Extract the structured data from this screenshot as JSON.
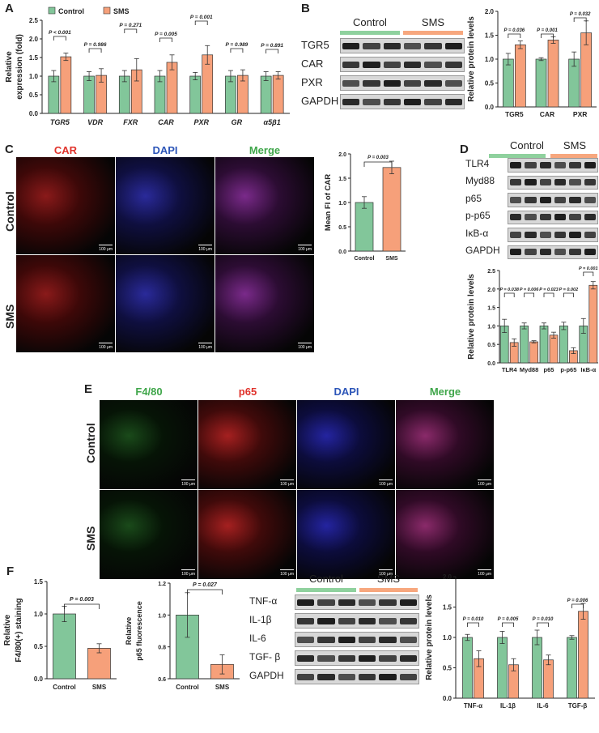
{
  "panels": {
    "A": "A",
    "B": "B",
    "C": "C",
    "D": "D",
    "E": "E",
    "F": "F",
    "G": "G"
  },
  "colors": {
    "control": "#8fd19e",
    "sms": "#f7a77e",
    "control_bar": "#82c69a",
    "sms_bar": "#f6a07a",
    "red": "#e0322b",
    "green_lbl": "#3fa64a",
    "blue_lbl": "#2c55b8"
  },
  "legend": {
    "control": "Control",
    "sms": "SMS"
  },
  "group_labels": {
    "control": "Control",
    "sms": "SMS"
  },
  "panelB": {
    "proteins": [
      "TGR5",
      "CAR",
      "PXR",
      "GAPDH"
    ]
  },
  "panelD": {
    "proteins": [
      "TLR4",
      "Myd88",
      "p65",
      "p-p65",
      "IκB-α",
      "GAPDH"
    ]
  },
  "panelG": {
    "proteins": [
      "TNF-α",
      "IL-1β",
      "IL-6",
      "TGF- β",
      "GAPDH"
    ]
  },
  "panelC": {
    "channels": [
      "CAR",
      "DAPI",
      "Merge"
    ],
    "rows": [
      "Control",
      "SMS"
    ],
    "scale": "100 μm"
  },
  "panelE": {
    "channels": [
      "F4/80",
      "p65",
      "DAPI",
      "Merge"
    ],
    "rows": [
      "Control",
      "SMS"
    ],
    "scale": "100 μm"
  },
  "chart_data": [
    {
      "id": "A",
      "type": "bar",
      "categories": [
        "TGR5",
        "VDR",
        "FXR",
        "CAR",
        "PXR",
        "GR",
        "α5β1"
      ],
      "series": [
        {
          "name": "Control",
          "values": [
            1.0,
            1.0,
            1.0,
            1.0,
            1.0,
            1.0,
            1.0
          ],
          "err": [
            0.15,
            0.12,
            0.15,
            0.15,
            0.1,
            0.15,
            0.12
          ]
        },
        {
          "name": "SMS",
          "values": [
            1.52,
            1.02,
            1.17,
            1.37,
            1.57,
            1.02,
            1.02
          ],
          "err": [
            0.1,
            0.18,
            0.3,
            0.2,
            0.25,
            0.15,
            0.1
          ]
        }
      ],
      "pvalues": [
        "P < 0.001",
        "P = 0.986",
        "P = 0.271",
        "P = 0.005",
        "P = 0.001",
        "P = 0.989",
        "P = 0.891"
      ],
      "ylabel": "Relative\nexpression (fold)",
      "ylim": [
        0,
        2.5
      ],
      "yticks": [
        "0.0",
        "0.5",
        "1.0",
        "1.5",
        "2.0",
        "2.5"
      ]
    },
    {
      "id": "B",
      "type": "bar",
      "categories": [
        "TGR5",
        "CAR",
        "PXR"
      ],
      "series": [
        {
          "name": "Control",
          "values": [
            1.0,
            1.0,
            1.0
          ],
          "err": [
            0.12,
            0.03,
            0.15
          ]
        },
        {
          "name": "SMS",
          "values": [
            1.3,
            1.4,
            1.55
          ],
          "err": [
            0.08,
            0.07,
            0.25
          ]
        }
      ],
      "pvalues": [
        "P = 0.036",
        "P = 0.001",
        "P = 0.032"
      ],
      "ylabel": "Relative protein levels",
      "ylim": [
        0,
        2.0
      ],
      "yticks": [
        "0.0",
        "0.5",
        "1.0",
        "1.5",
        "2.0"
      ]
    },
    {
      "id": "C",
      "type": "bar",
      "categories": [
        "Control",
        "SMS"
      ],
      "series": [
        {
          "name": "",
          "values": [
            1.0,
            1.72
          ],
          "err": [
            0.12,
            0.13
          ]
        }
      ],
      "pvalues": [
        "P = 0.003"
      ],
      "ylabel": "Mean FI of CAR",
      "ylim": [
        0,
        2.0
      ],
      "yticks": [
        "0.0",
        "0.5",
        "1.0",
        "1.5",
        "2.0"
      ]
    },
    {
      "id": "D",
      "type": "bar",
      "categories": [
        "TLR4",
        "Myd88",
        "p65",
        "p-p65",
        "IκB-α"
      ],
      "series": [
        {
          "name": "Control",
          "values": [
            1.0,
            1.0,
            1.0,
            1.0,
            1.0
          ],
          "err": [
            0.18,
            0.08,
            0.08,
            0.1,
            0.2
          ]
        },
        {
          "name": "SMS",
          "values": [
            0.55,
            0.57,
            0.75,
            0.33,
            2.1
          ],
          "err": [
            0.1,
            0.03,
            0.08,
            0.08,
            0.1
          ]
        }
      ],
      "pvalues": [
        "P = 0.038",
        "P = 0.006",
        "P = 0.023",
        "P = 0.002",
        "P = 0.001"
      ],
      "ylabel": "Relative protein levels",
      "ylim": [
        0,
        2.5
      ],
      "yticks": [
        "0.0",
        "0.5",
        "1.0",
        "1.5",
        "2.0",
        "2.5"
      ]
    },
    {
      "id": "F1",
      "type": "bar",
      "categories": [
        "Control",
        "SMS"
      ],
      "series": [
        {
          "name": "",
          "values": [
            1.0,
            0.47
          ],
          "err": [
            0.12,
            0.07
          ]
        }
      ],
      "pvalues": [
        "P = 0.003"
      ],
      "ylabel": "Relative\nF4/80(+) staining",
      "ylim": [
        0,
        1.5
      ],
      "yticks": [
        "0.0",
        "0.5",
        "1.0",
        "1.5"
      ]
    },
    {
      "id": "F2",
      "type": "bar",
      "categories": [
        "Control",
        "SMS"
      ],
      "series": [
        {
          "name": "",
          "values": [
            1.0,
            0.69
          ],
          "err": [
            0.14,
            0.06
          ]
        }
      ],
      "pvalues": [
        "P = 0.027"
      ],
      "ylabel": "Relative\np65 fluorescence",
      "ylim": [
        0.6,
        1.2
      ],
      "yticks": [
        "0.6",
        "0.8",
        "1.0",
        "1.2"
      ]
    },
    {
      "id": "G",
      "type": "bar",
      "categories": [
        "TNF-α",
        "IL-1β",
        "IL-6",
        "TGF-β"
      ],
      "series": [
        {
          "name": "Control",
          "values": [
            1.0,
            1.0,
            1.0,
            1.0
          ],
          "err": [
            0.05,
            0.1,
            0.12,
            0.03
          ]
        },
        {
          "name": "SMS",
          "values": [
            0.65,
            0.55,
            0.63,
            1.43
          ],
          "err": [
            0.13,
            0.1,
            0.08,
            0.13
          ]
        }
      ],
      "pvalues": [
        "P = 0.010",
        "P = 0.005",
        "P = 0.010",
        "P = 0.006"
      ],
      "ylabel": "Relative protein levels",
      "ylim": [
        0,
        2.0
      ],
      "yticks": [
        "0.0",
        "0.5",
        "1.0",
        "1.5",
        "2.0"
      ]
    }
  ]
}
